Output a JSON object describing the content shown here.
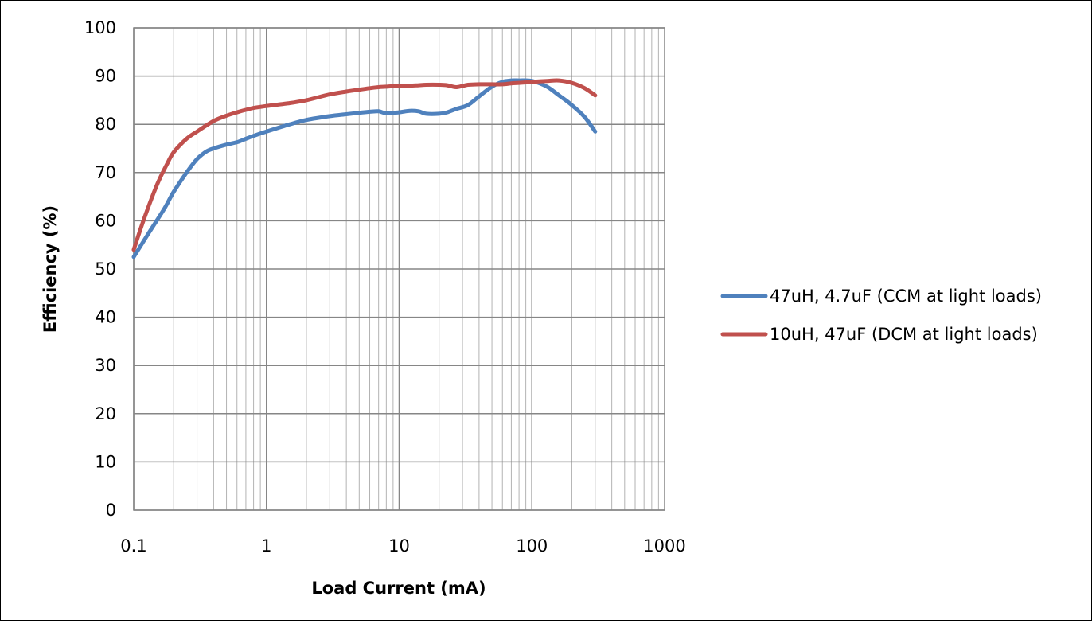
{
  "chart_data": {
    "type": "line",
    "title": "",
    "xlabel": "Load Current (mA)",
    "ylabel": "Efficiency (%)",
    "x_scale": "log",
    "xlim": [
      0.1,
      1000
    ],
    "ylim": [
      0,
      100
    ],
    "x_ticks": [
      0.1,
      1,
      10,
      100,
      1000
    ],
    "x_tick_labels": [
      "0.1",
      "1",
      "10",
      "100",
      "1000"
    ],
    "y_ticks": [
      0,
      10,
      20,
      30,
      40,
      50,
      60,
      70,
      80,
      90,
      100
    ],
    "y_tick_labels": [
      "0",
      "10",
      "20",
      "30",
      "40",
      "50",
      "60",
      "70",
      "80",
      "90",
      "100"
    ],
    "grid": true,
    "minor_grid": true,
    "legend_position": "right",
    "series": [
      {
        "name": "47uH, 4.7uF (CCM at light loads)",
        "color": "#4F81BD",
        "x": [
          0.1,
          0.13,
          0.17,
          0.2,
          0.25,
          0.3,
          0.35,
          0.4,
          0.5,
          0.6,
          0.7,
          0.8,
          1,
          1.5,
          2,
          3,
          4,
          5,
          6,
          7,
          8,
          10,
          12,
          14,
          16,
          20,
          23,
          27,
          33,
          40,
          50,
          60,
          70,
          80,
          100,
          130,
          160,
          200,
          250,
          300
        ],
        "y": [
          52.5,
          57.5,
          62.5,
          66,
          70,
          72.8,
          74.3,
          75,
          75.8,
          76.3,
          77,
          77.6,
          78.5,
          80,
          80.9,
          81.7,
          82.1,
          82.4,
          82.6,
          82.7,
          82.3,
          82.5,
          82.8,
          82.7,
          82.2,
          82.2,
          82.5,
          83.2,
          84,
          85.8,
          87.8,
          88.8,
          89.1,
          89.1,
          89,
          87.8,
          86,
          84,
          81.5,
          78.5
        ]
      },
      {
        "name": "10uH, 47uF (DCM at light loads)",
        "color": "#C0504D",
        "x": [
          0.1,
          0.12,
          0.15,
          0.18,
          0.2,
          0.25,
          0.3,
          0.4,
          0.5,
          0.6,
          0.7,
          0.8,
          1,
          1.5,
          2,
          3,
          4,
          5,
          6,
          7,
          8,
          10,
          12,
          14,
          16,
          20,
          23,
          27,
          33,
          40,
          50,
          60,
          70,
          80,
          100,
          130,
          160,
          200,
          250,
          300
        ],
        "y": [
          54,
          60.5,
          67.5,
          72,
          74.2,
          77,
          78.5,
          80.7,
          81.8,
          82.5,
          83,
          83.4,
          83.8,
          84.4,
          85,
          86.2,
          86.8,
          87.2,
          87.5,
          87.7,
          87.8,
          88,
          88,
          88.1,
          88.2,
          88.2,
          88.1,
          87.7,
          88.2,
          88.3,
          88.3,
          88.3,
          88.5,
          88.6,
          88.8,
          89,
          89.1,
          88.6,
          87.5,
          86
        ]
      }
    ]
  }
}
